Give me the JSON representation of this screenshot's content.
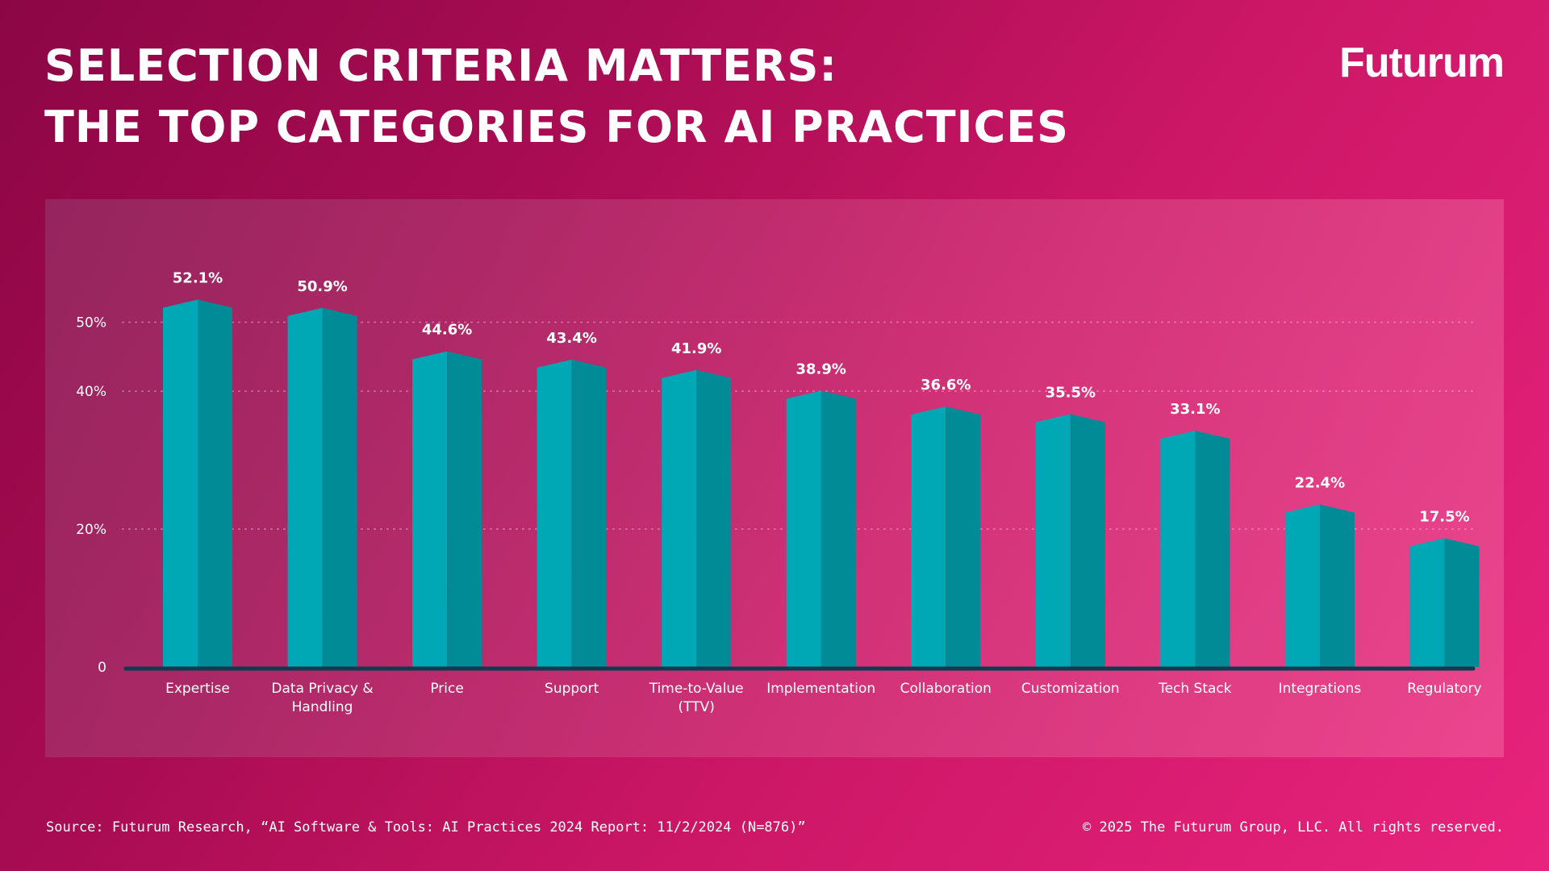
{
  "header": {
    "title_line1": "SELECTION CRITERIA MATTERS:",
    "title_line2": "THE TOP CATEGORIES FOR AI PRACTICES",
    "logo": "Futurum"
  },
  "footer": {
    "source": "Source: Futurum Research, “AI Software & Tools: AI Practices 2024 Report: 11/2/2024 (N=876)”",
    "copyright": "© 2025 The Futurum Group, LLC. All rights reserved."
  },
  "colors": {
    "bar_front": "#00a8b5",
    "bar_side": "#008b96",
    "bar_top": "#00bcc8",
    "baseline": "#0f3a4f"
  },
  "chart_data": {
    "type": "bar",
    "title": "",
    "xlabel": "",
    "ylabel": "",
    "ylim": [
      0,
      50
    ],
    "y_ticks": [
      0,
      20,
      40,
      50
    ],
    "y_tick_labels": [
      "0",
      "20%",
      "40%",
      "50%"
    ],
    "grid": true,
    "categories": [
      [
        "Expertise"
      ],
      [
        "Data Privacy &",
        "Handling"
      ],
      [
        "Price"
      ],
      [
        "Support"
      ],
      [
        "Time-to-Value",
        "(TTV)"
      ],
      [
        "Implementation"
      ],
      [
        "Collaboration"
      ],
      [
        "Customization"
      ],
      [
        "Tech Stack"
      ],
      [
        "Integrations"
      ],
      [
        "Regulatory"
      ]
    ],
    "values": [
      52.1,
      50.9,
      44.6,
      43.4,
      41.9,
      38.9,
      36.6,
      35.5,
      33.1,
      22.4,
      17.5
    ],
    "value_labels": [
      "52.1%",
      "50.9%",
      "44.6%",
      "43.4%",
      "41.9%",
      "38.9%",
      "36.6%",
      "35.5%",
      "33.1%",
      "22.4%",
      "17.5%"
    ]
  }
}
